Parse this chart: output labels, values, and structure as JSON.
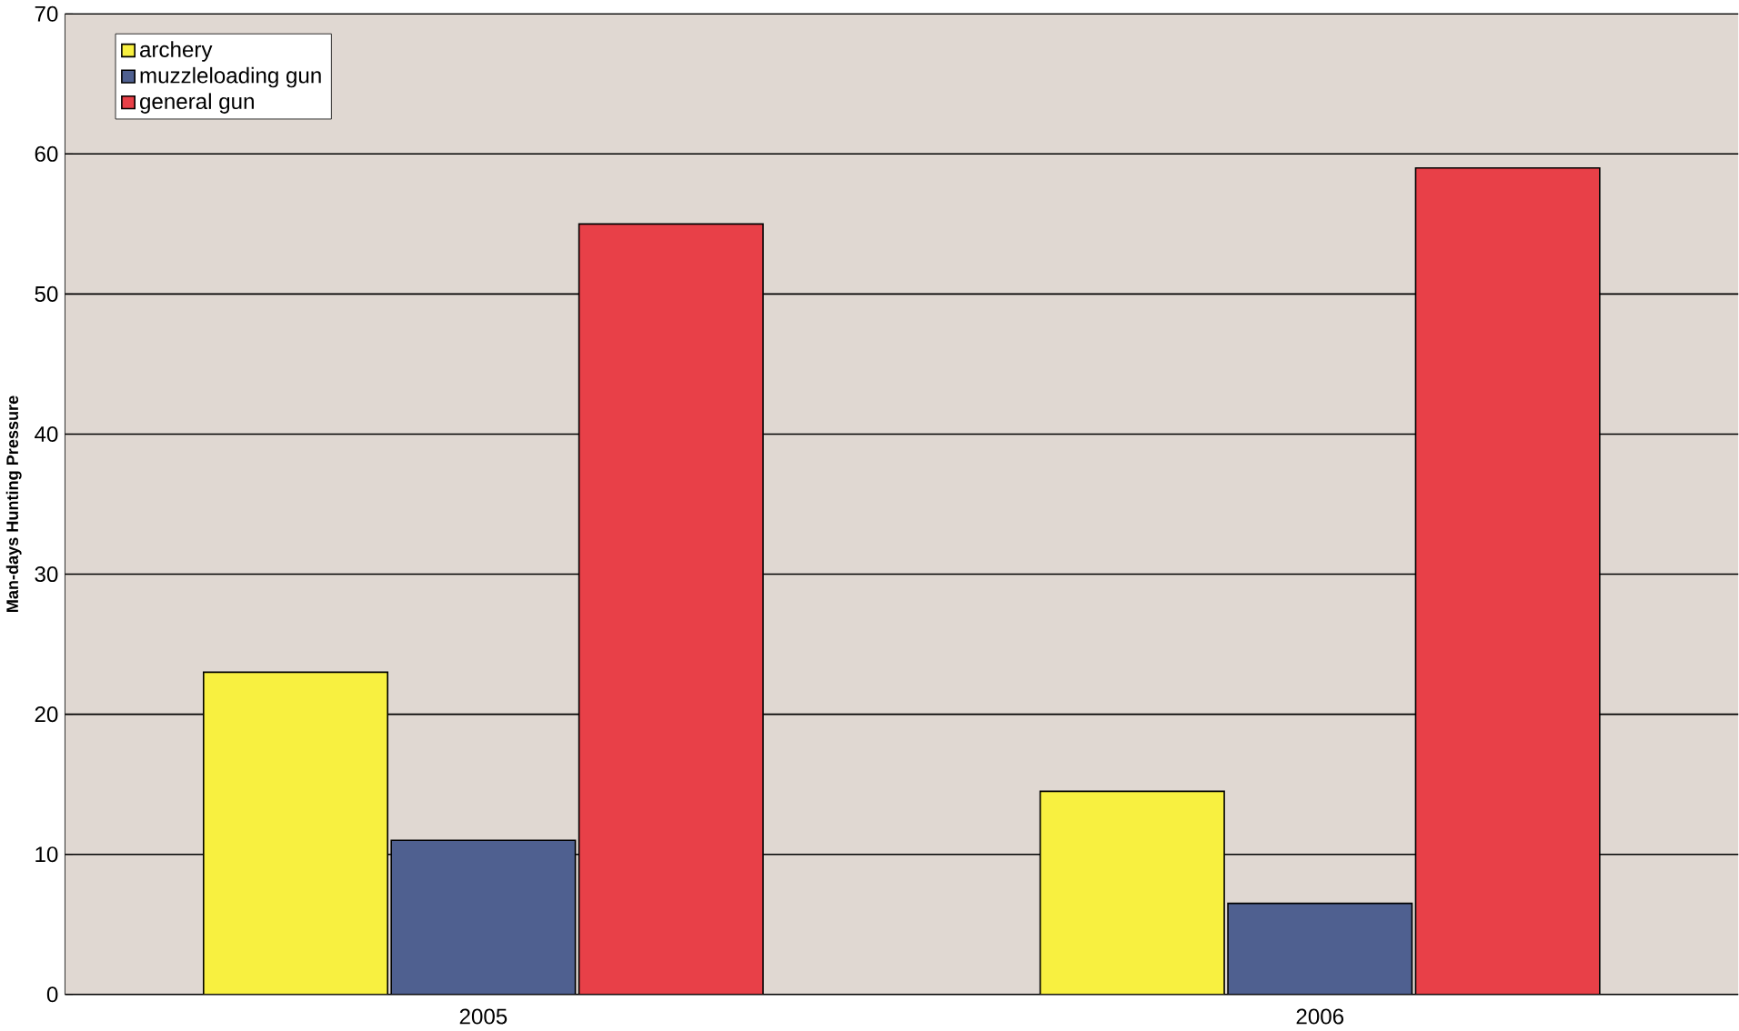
{
  "chart_data": {
    "type": "bar",
    "ylabel": "Man-days Hunting Pressure",
    "categories": [
      "2005",
      "2006"
    ],
    "series": [
      {
        "name": "archery",
        "color": "#f8f040",
        "values": [
          23,
          14.5
        ]
      },
      {
        "name": "muzzleloading gun",
        "color": "#4f6090",
        "values": [
          11,
          6.5
        ]
      },
      {
        "name": "general gun",
        "color": "#e84048",
        "values": [
          55,
          59
        ]
      }
    ],
    "ylim": [
      0,
      70
    ],
    "yticks": [
      0,
      10,
      20,
      30,
      40,
      50,
      60,
      70
    ],
    "grid": "y",
    "legend": "top left"
  }
}
